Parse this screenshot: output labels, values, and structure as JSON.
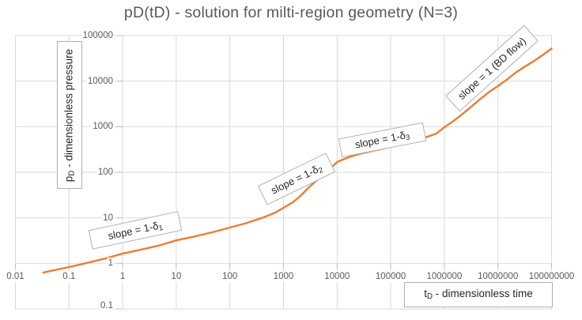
{
  "title": "pD(tD) - solution for milti-region geometry (N=3)",
  "x_axis": {
    "label_main": "t",
    "label_sub": "D",
    "label_rest": " - dimensionless time"
  },
  "y_axis": {
    "label_main": "p",
    "label_sub": "D",
    "label_rest": " - dimensionless pressure"
  },
  "annotations": [
    {
      "pre": "slope = 1-δ",
      "sub": "1"
    },
    {
      "pre": "slope = 1-δ",
      "sub": "2"
    },
    {
      "pre": "slope = 1-δ",
      "sub": "3"
    },
    {
      "pre": "slope = 1 (BD flow)",
      "sub": ""
    }
  ],
  "colors": {
    "curve": "#ED7D31",
    "gridline": "#D9D9D9",
    "tick_mark": "#BFBFBF",
    "tick_label": "#595959",
    "title": "#595959",
    "box_border": "#B0B0B0"
  },
  "chart_data": {
    "type": "line",
    "title": "pD(tD) - solution for milti-region geometry (N=3)",
    "xlabel": "tD - dimensionless time",
    "ylabel": "pD - dimensionless pressure",
    "x_scale": "log",
    "y_scale": "log",
    "xlim": [
      0.01,
      100000000
    ],
    "ylim": [
      0.1,
      100000
    ],
    "x_ticks": [
      0.01,
      0.1,
      1,
      10,
      100,
      1000,
      10000,
      100000,
      1000000,
      10000000,
      100000000
    ],
    "x_tick_labels": [
      "0.01",
      "0.1",
      "1",
      "10",
      "100",
      "1000",
      "10000",
      "100000",
      "1000000",
      "10000000",
      "100000000"
    ],
    "y_ticks": [
      0.1,
      1,
      10,
      100,
      1000,
      10000,
      100000
    ],
    "y_tick_labels": [
      "0.1",
      "1",
      "10",
      "100",
      "1000",
      "10000",
      "100000"
    ],
    "grid": true,
    "legend": false,
    "annotations": [
      "slope = 1-δ1",
      "slope = 1-δ2",
      "slope = 1-δ3",
      "slope = 1 (BD flow)"
    ],
    "series": [
      {
        "name": "pD",
        "color": "#ED7D31",
        "points": [
          [
            0.033,
            0.63
          ],
          [
            0.05,
            0.7
          ],
          [
            0.1,
            0.83
          ],
          [
            0.2,
            1.0
          ],
          [
            0.5,
            1.3
          ],
          [
            1,
            1.64
          ],
          [
            2,
            1.95
          ],
          [
            5,
            2.5
          ],
          [
            10,
            3.2
          ],
          [
            20,
            3.8
          ],
          [
            50,
            4.9
          ],
          [
            100,
            6.1
          ],
          [
            200,
            7.6
          ],
          [
            400,
            10
          ],
          [
            700,
            13
          ],
          [
            1000,
            16.6
          ],
          [
            1500,
            22
          ],
          [
            2000,
            29
          ],
          [
            3000,
            47
          ],
          [
            5000,
            80
          ],
          [
            7000,
            112
          ],
          [
            10000,
            168
          ],
          [
            15000,
            205
          ],
          [
            20000,
            230
          ],
          [
            30000,
            262
          ],
          [
            50000,
            300
          ],
          [
            70000,
            325
          ],
          [
            100000,
            365
          ],
          [
            200000,
            440
          ],
          [
            300000,
            500
          ],
          [
            500000,
            610
          ],
          [
            700000,
            700
          ],
          [
            1000000,
            970
          ],
          [
            1500000,
            1350
          ],
          [
            2000000,
            1750
          ],
          [
            3000000,
            2600
          ],
          [
            5000000,
            4300
          ],
          [
            7000000,
            5900
          ],
          [
            10000000,
            7800
          ],
          [
            15000000,
            11000
          ],
          [
            20000000,
            14500
          ],
          [
            30000000,
            20000
          ],
          [
            50000000,
            29000
          ],
          [
            70000000,
            38000
          ],
          [
            100000000,
            52000
          ]
        ]
      }
    ]
  }
}
